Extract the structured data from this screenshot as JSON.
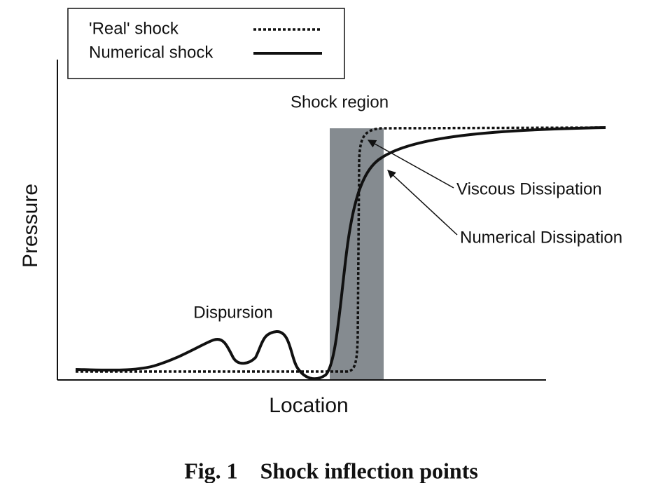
{
  "legend": {
    "entries": [
      "'Real' shock",
      "Numerical shock"
    ]
  },
  "annotations": {
    "shock_region": "Shock region",
    "viscous": "Viscous Dissipation",
    "numerical": "Numerical Dissipation",
    "dispersion": "Dispursion"
  },
  "axes": {
    "y_label": "Pressure",
    "x_label": "Location"
  },
  "caption": "Fig. 1    Shock inflection points"
}
